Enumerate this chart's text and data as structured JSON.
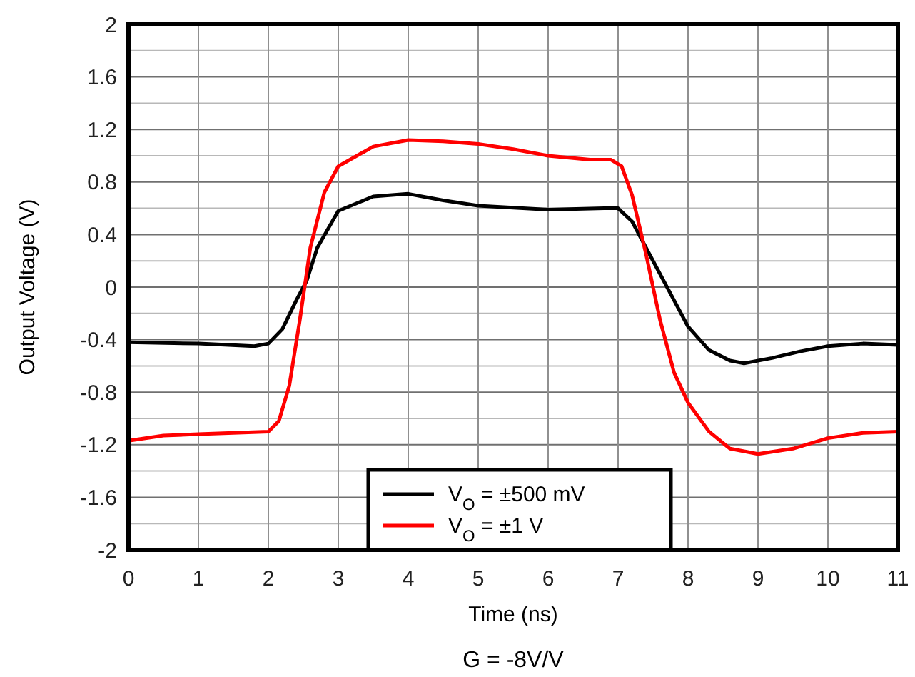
{
  "chart_data": {
    "type": "line",
    "xlabel": "Time (ns)",
    "ylabel": "Output Voltage (V)",
    "annotations": [
      "G = -8V/V"
    ],
    "xlim": [
      0,
      11
    ],
    "xticks": [
      0,
      1,
      2,
      3,
      4,
      5,
      6,
      7,
      8,
      9,
      10,
      11
    ],
    "ylim": [
      -2,
      2
    ],
    "yticks": [
      -2,
      {
        "value": -1.8,
        "label": null
      },
      -1.6,
      {
        "value": -1.4,
        "label": null
      },
      -1.2,
      {
        "value": -1,
        "label": null
      },
      -0.8,
      {
        "value": -0.6,
        "label": null
      },
      -0.4,
      {
        "value": -0.2,
        "label": null
      },
      0,
      {
        "value": 0.2,
        "label": null
      },
      0.4,
      {
        "value": 0.6,
        "label": null
      },
      0.8,
      {
        "value": 1,
        "label": null
      },
      1.2,
      {
        "value": 1.4,
        "label": null
      },
      1.6,
      {
        "value": 1.8,
        "label": null
      },
      2
    ],
    "grid": true,
    "legend": "bottom right",
    "line_style": "solid",
    "series": [
      {
        "name": "V$_{O}$  =  ±500 mV",
        "color": "#000000",
        "x": [
          0,
          1,
          1.8,
          2,
          2.2,
          2.4,
          2.55,
          2.7,
          3,
          3.5,
          4,
          4.5,
          5,
          6,
          6.8,
          7,
          7.2,
          7.5,
          7.8,
          8,
          8.3,
          8.6,
          8.8,
          9.2,
          9.6,
          10,
          10.5,
          11
        ],
        "values": [
          -0.42,
          -0.43,
          -0.45,
          -0.43,
          -0.32,
          -0.1,
          0.05,
          0.3,
          0.58,
          0.69,
          0.71,
          0.66,
          0.62,
          0.59,
          0.6,
          0.6,
          0.5,
          0.2,
          -0.1,
          -0.3,
          -0.48,
          -0.56,
          -0.58,
          -0.54,
          -0.49,
          -0.45,
          -0.43,
          -0.44
        ]
      },
      {
        "name": "V$_{O}$  =  ±1 V",
        "color": "#ff0000",
        "x": [
          0,
          0.5,
          1,
          2,
          2.15,
          2.3,
          2.45,
          2.6,
          2.8,
          3,
          3.5,
          4,
          4.5,
          5,
          5.5,
          6,
          6.6,
          6.9,
          7.05,
          7.2,
          7.4,
          7.6,
          7.8,
          8,
          8.3,
          8.6,
          9,
          9.5,
          10,
          10.5,
          11
        ],
        "values": [
          -1.17,
          -1.13,
          -1.12,
          -1.1,
          -1.02,
          -0.75,
          -0.25,
          0.3,
          0.72,
          0.92,
          1.07,
          1.12,
          1.11,
          1.09,
          1.05,
          1.0,
          0.97,
          0.97,
          0.92,
          0.7,
          0.25,
          -0.25,
          -0.65,
          -0.88,
          -1.1,
          -1.23,
          -1.27,
          -1.23,
          -1.15,
          -1.11,
          -1.1
        ]
      }
    ]
  }
}
